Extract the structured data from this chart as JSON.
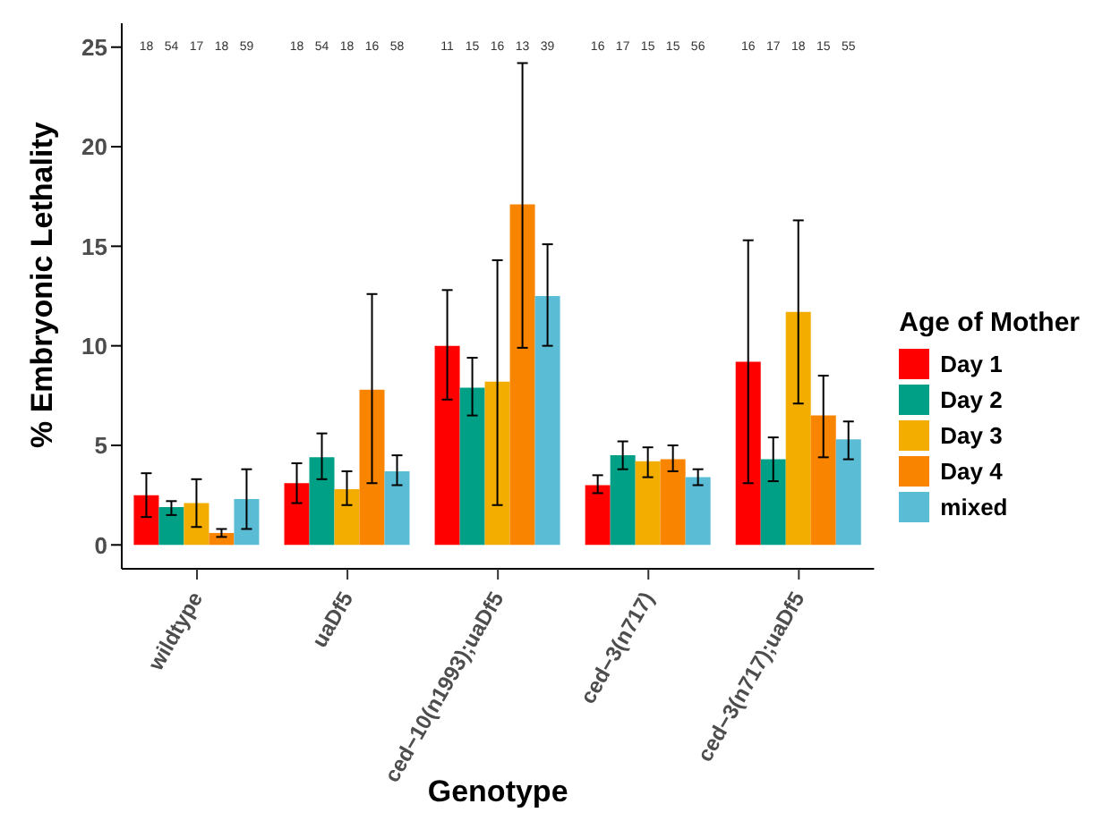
{
  "chart_data": {
    "type": "bar",
    "xlabel": "Genotype",
    "ylabel": "% Embryonic Lethality",
    "legend_title": "Age of Mother",
    "legend": "right",
    "grid": false,
    "categories": [
      "wildtype",
      "uaDf5",
      "ced−10(n1993);uaDf5",
      "ced−3(n717)",
      "ced−3(n717);uaDf5"
    ],
    "ylim": [
      -1.2,
      26.2
    ],
    "yticks": [
      0,
      5,
      10,
      15,
      20,
      25
    ],
    "series": [
      {
        "name": "Day 1",
        "color": "#ff0000",
        "values": [
          2.5,
          3.1,
          10.0,
          3.0,
          9.2
        ],
        "errors": [
          [
            1.4,
            3.6
          ],
          [
            2.1,
            4.1
          ],
          [
            7.3,
            12.8
          ],
          [
            2.6,
            3.5
          ],
          [
            3.1,
            15.3
          ]
        ]
      },
      {
        "name": "Day 2",
        "color": "#00a087",
        "values": [
          1.9,
          4.4,
          7.9,
          4.5,
          4.3
        ],
        "errors": [
          [
            1.5,
            2.2
          ],
          [
            3.3,
            5.6
          ],
          [
            6.5,
            9.4
          ],
          [
            3.8,
            5.2
          ],
          [
            3.2,
            5.4
          ]
        ]
      },
      {
        "name": "Day 3",
        "color": "#f2ad00",
        "values": [
          2.1,
          2.8,
          8.2,
          4.2,
          11.7
        ],
        "errors": [
          [
            0.9,
            3.3
          ],
          [
            2.0,
            3.7
          ],
          [
            2.0,
            14.3
          ],
          [
            3.4,
            4.9
          ],
          [
            7.1,
            16.3
          ]
        ]
      },
      {
        "name": "Day 4",
        "color": "#f98400",
        "values": [
          0.6,
          7.8,
          17.1,
          4.3,
          6.5
        ],
        "errors": [
          [
            0.4,
            0.8
          ],
          [
            3.1,
            12.6
          ],
          [
            9.9,
            24.2
          ],
          [
            3.7,
            5.0
          ],
          [
            4.4,
            8.5
          ]
        ]
      },
      {
        "name": "mixed",
        "color": "#5bbcd6",
        "values": [
          2.3,
          3.7,
          12.5,
          3.4,
          5.3
        ],
        "errors": [
          [
            0.8,
            3.8
          ],
          [
            3.0,
            4.5
          ],
          [
            10.0,
            15.1
          ],
          [
            3.0,
            3.8
          ],
          [
            4.3,
            6.2
          ]
        ]
      }
    ],
    "annotations": [
      "18",
      "54",
      "17",
      "18",
      "59",
      "18",
      "54",
      "18",
      "16",
      "58",
      "11",
      "15",
      "16",
      "13",
      "39",
      "16",
      "17",
      "15",
      "15",
      "56",
      "16",
      "17",
      "18",
      "15",
      "55"
    ]
  }
}
